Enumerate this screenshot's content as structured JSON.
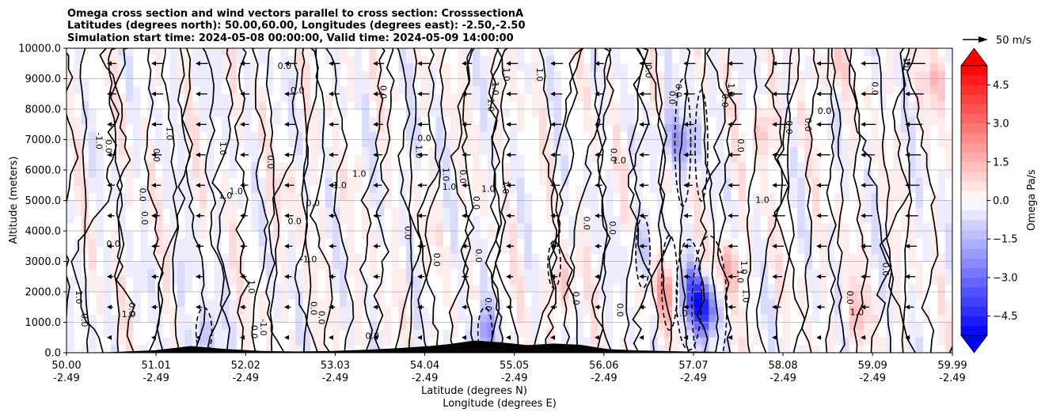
{
  "chart_data": {
    "type": "contour",
    "title_lines": [
      "Omega cross section and wind vectors parallel to cross section: CrosssectionA",
      "Latitudes (degrees north): 50.00,60.00, Longitudes (degrees east): -2.50,-2.50",
      "Simulation start time: 2024-05-08 00:00:00, Valid time: 2024-05-09 14:00:00"
    ],
    "ylabel": "Altitude (meters)",
    "xlabel_lat": "Latitude (degrees N)",
    "xlabel_lon": "Longitude (degrees E)",
    "ylim": [
      0,
      10000
    ],
    "xlim": [
      50.0,
      59.99
    ],
    "yticks": [
      0,
      1000,
      2000,
      3000,
      4000,
      5000,
      6000,
      7000,
      8000,
      9000,
      10000
    ],
    "ytick_labels": [
      "0.0",
      "1000.0",
      "2000.0",
      "3000.0",
      "4000.0",
      "5000.0",
      "6000.0",
      "7000.0",
      "8000.0",
      "9000.0",
      "10000.0"
    ],
    "xticks": [
      {
        "lat": "50.00",
        "lon": "-2.49"
      },
      {
        "lat": "51.01",
        "lon": "-2.49"
      },
      {
        "lat": "52.02",
        "lon": "-2.49"
      },
      {
        "lat": "53.03",
        "lon": "-2.49"
      },
      {
        "lat": "54.04",
        "lon": "-2.49"
      },
      {
        "lat": "55.05",
        "lon": "-2.49"
      },
      {
        "lat": "56.06",
        "lon": "-2.49"
      },
      {
        "lat": "57.07",
        "lon": "-2.49"
      },
      {
        "lat": "58.08",
        "lon": "-2.49"
      },
      {
        "lat": "59.09",
        "lon": "-2.49"
      },
      {
        "lat": "59.99",
        "lon": "-2.49"
      }
    ],
    "grid": "horizontal",
    "colorbar": {
      "label": "Omega Pa/s",
      "range": [
        -5.25,
        5.25
      ],
      "step": 0.375,
      "ticks": [
        4.5,
        3.0,
        1.5,
        0.0,
        -1.5,
        -3.0,
        -4.5
      ],
      "tick_labels": [
        "4.5",
        "3.0",
        "1.5",
        "0.0",
        "−1.5",
        "−3.0",
        "−4.5"
      ],
      "colormap": "bwr",
      "extend": "both"
    },
    "contour_levels": [
      -1.0,
      0.0,
      1.0
    ],
    "contour_labels": [
      "0.0",
      "1.0",
      "-1.0"
    ],
    "quiver_key": {
      "value": 50,
      "label": "50 m/s"
    },
    "wind_vectors": {
      "columns_lat": [
        50.5,
        51.0,
        51.5,
        52.0,
        52.5,
        53.0,
        53.5,
        54.0,
        54.5,
        55.0,
        55.5,
        56.0,
        56.5,
        57.0,
        57.5,
        58.0,
        58.5,
        59.0,
        59.5
      ],
      "rows_alt": [
        500,
        1500,
        2500,
        3500,
        4500,
        5500,
        6500,
        7500,
        8500,
        9500
      ]
    },
    "omega_features": [
      {
        "lat": 55.6,
        "alt": 2200,
        "value": 1.2
      },
      {
        "lat": 56.75,
        "alt": 2000,
        "value": 1.8
      },
      {
        "lat": 57.2,
        "alt": 1400,
        "value": -4.2
      },
      {
        "lat": 57.05,
        "alt": 2000,
        "value": -2.8
      },
      {
        "lat": 57.45,
        "alt": 2700,
        "value": 1.6
      },
      {
        "lat": 56.8,
        "alt": 7200,
        "value": -1.5
      },
      {
        "lat": 57.0,
        "alt": 6800,
        "value": -1.8
      },
      {
        "lat": 57.85,
        "alt": 7300,
        "value": 1.3
      },
      {
        "lat": 51.55,
        "alt": 500,
        "value": -1.6
      },
      {
        "lat": 54.7,
        "alt": 600,
        "value": -2.2
      },
      {
        "lat": 56.45,
        "alt": 3400,
        "value": -1.2
      },
      {
        "lat": 58.6,
        "alt": 9400,
        "value": 1.0
      },
      {
        "lat": 59.85,
        "alt": 9000,
        "value": 1.4
      },
      {
        "lat": 53.9,
        "alt": 7000,
        "value": -0.6
      },
      {
        "lat": 52.5,
        "alt": 5500,
        "value": 0.5
      },
      {
        "lat": 58.9,
        "alt": 1300,
        "value": 1.0
      },
      {
        "lat": 51.3,
        "alt": 2500,
        "value": -0.7
      }
    ]
  }
}
